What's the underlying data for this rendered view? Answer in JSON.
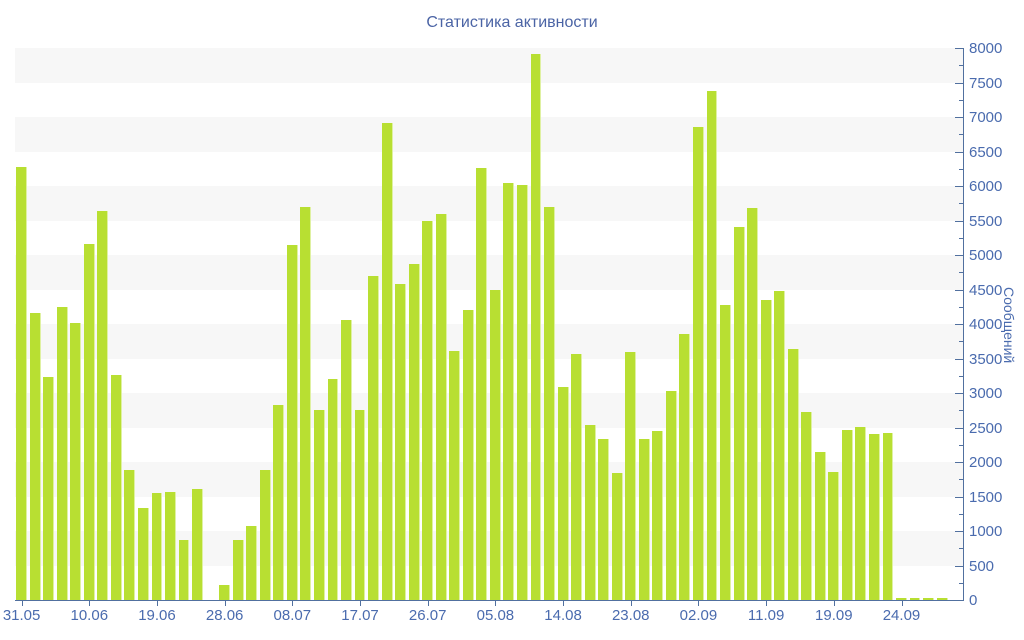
{
  "chart_data": {
    "type": "bar",
    "title": "Статистика активности",
    "xlabel": "",
    "ylabel": "Сообщений",
    "ylim": [
      0,
      8000
    ],
    "y_tick_step": 500,
    "y_minor_tick_step": 250,
    "y_tick_labels": [
      "0",
      "500",
      "1000",
      "1500",
      "2000",
      "2500",
      "3000",
      "3500",
      "4000",
      "4500",
      "5000",
      "5500",
      "6000",
      "6500",
      "7000",
      "7500",
      "8000"
    ],
    "x_tick_labels": [
      "31.05",
      "10.06",
      "19.06",
      "28.06",
      "08.07",
      "17.07",
      "26.07",
      "05.08",
      "14.08",
      "23.08",
      "02.09",
      "11.09",
      "19.09",
      "24.09"
    ],
    "x_tick_every_n_bars": 5,
    "legend": "none",
    "grid": "alternating-bands",
    "values": [
      6280,
      4160,
      3230,
      4240,
      4010,
      5160,
      5640,
      3260,
      1880,
      1330,
      1550,
      1570,
      870,
      1610,
      0,
      220,
      870,
      1070,
      1880,
      2830,
      5140,
      5690,
      2760,
      3200,
      4060,
      2750,
      4690,
      6920,
      4580,
      4870,
      5490,
      5590,
      3610,
      4210,
      6260,
      4490,
      6050,
      6020,
      7920,
      5690,
      3090,
      3560,
      2530,
      2340,
      1840,
      3600,
      2330,
      2450,
      3030,
      3860,
      6850,
      7380,
      4270,
      5400,
      5680,
      4350,
      4480,
      3640,
      2730,
      2140,
      1850,
      2460,
      2510,
      2410,
      2420,
      30,
      30,
      30,
      30
    ],
    "colors": {
      "bar": "#b8df32",
      "axis_line": "#51709f",
      "axis_label": "#4a6bae",
      "title": "#4b64a5",
      "band": "#f7f7f7",
      "background": "#ffffff"
    }
  }
}
